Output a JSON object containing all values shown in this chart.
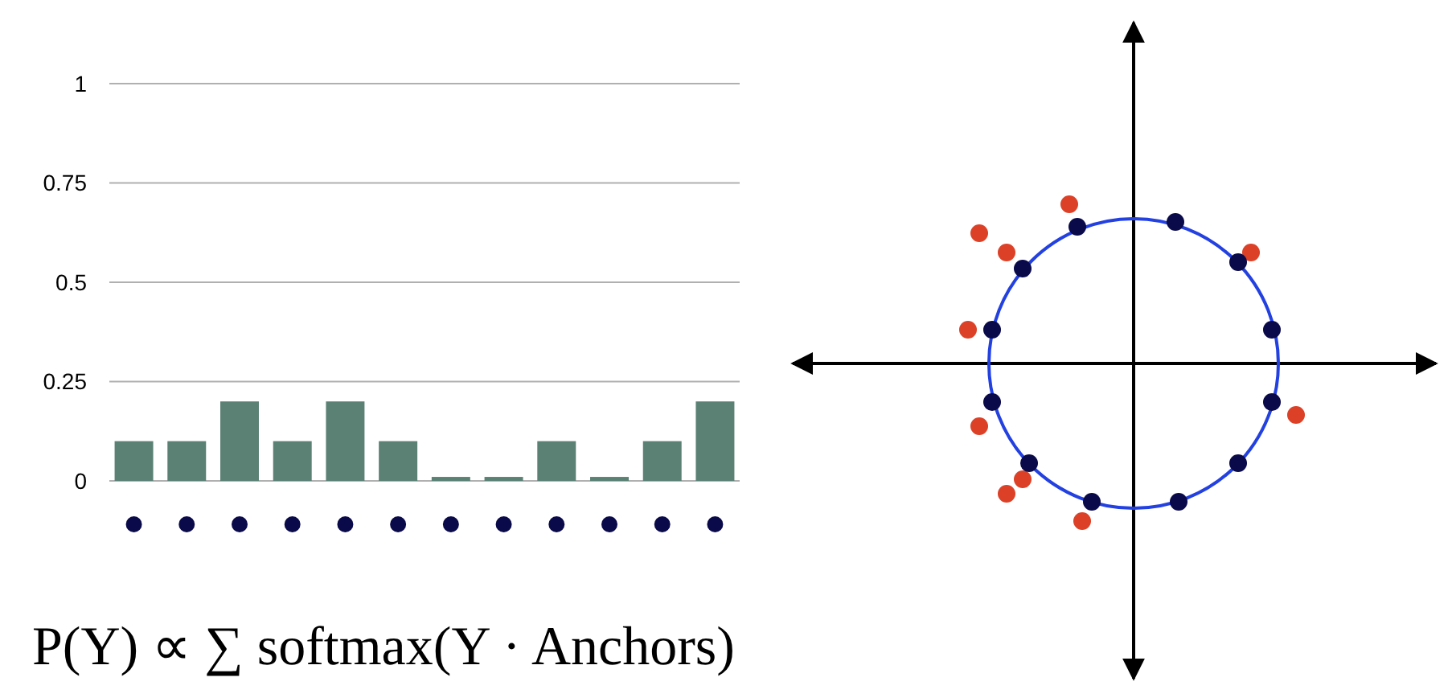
{
  "chart_data": {
    "type": "bar",
    "categories": [
      null,
      null,
      null,
      null,
      null,
      null,
      null,
      null,
      null,
      null,
      null,
      null
    ],
    "values": [
      0.1,
      0.1,
      0.2,
      0.1,
      0.2,
      0.1,
      0.01,
      0.01,
      0.1,
      0.01,
      0.1,
      0.2
    ],
    "color": "#5b8175",
    "ylim": [
      0,
      1
    ],
    "yticks": [
      0,
      0.25,
      0.5,
      0.75,
      1
    ],
    "grid": "y",
    "annotations": [
      "P(Y) ∝ ∑ softmax(Y · Anchors)"
    ]
  }
}
